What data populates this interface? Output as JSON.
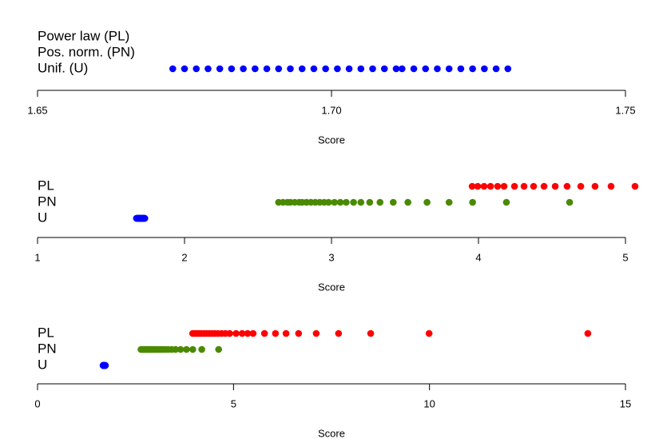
{
  "chart_data": [
    {
      "type": "strip",
      "categories": [
        "Power law (PL)",
        "Pos. norm. (PN)",
        "Unif. (U)"
      ],
      "series": [
        {
          "color": "#ff0000",
          "values": []
        },
        {
          "color": "#4a8a00",
          "values": []
        },
        {
          "color": "#0000ff",
          "values": [
            1.673,
            1.675,
            1.677,
            1.679,
            1.681,
            1.683,
            1.685,
            1.687,
            1.689,
            1.691,
            1.693,
            1.695,
            1.697,
            1.699,
            1.701,
            1.703,
            1.705,
            1.707,
            1.709,
            1.711,
            1.712,
            1.714,
            1.716,
            1.718,
            1.72,
            1.722,
            1.724,
            1.726,
            1.728,
            1.73
          ]
        }
      ],
      "xlim": [
        1.65,
        1.75
      ],
      "xticks": [
        1.65,
        {
          "value": 1.7,
          "label": "1.70"
        },
        1.75
      ],
      "xlabel": "Score"
    },
    {
      "type": "strip",
      "categories": [
        "PL",
        "PN",
        "U"
      ],
      "series": [
        {
          "color": "#ff0000",
          "values": [
            3.957,
            3.995,
            4.038,
            4.082,
            4.13,
            4.174,
            4.245,
            4.31,
            4.375,
            4.446,
            4.522,
            4.603,
            4.696,
            4.793,
            4.902,
            5.065
          ]
        },
        {
          "color": "#4a8a00",
          "values": [
            2.64,
            2.67,
            2.7,
            2.72,
            2.75,
            2.78,
            2.8,
            2.83,
            2.86,
            2.89,
            2.92,
            2.95,
            2.98,
            3.02,
            3.06,
            3.1,
            3.15,
            3.2,
            3.26,
            3.33,
            3.42,
            3.52,
            3.65,
            3.8,
            3.96,
            4.19,
            4.62
          ]
        },
        {
          "color": "#0000ff",
          "values": [
            1.673,
            1.675,
            1.677,
            1.679,
            1.681,
            1.683,
            1.685,
            1.687,
            1.689,
            1.691,
            1.693,
            1.695,
            1.697,
            1.699,
            1.701,
            1.703,
            1.705,
            1.707,
            1.709,
            1.711,
            1.712,
            1.714,
            1.716,
            1.718,
            1.72,
            1.722,
            1.724,
            1.726,
            1.728,
            1.73
          ]
        }
      ],
      "xlim": [
        1,
        5
      ],
      "xticks": [
        1,
        2,
        3,
        4,
        5
      ],
      "xlabel": "Score"
    },
    {
      "type": "strip",
      "categories": [
        "PL",
        "PN",
        "U"
      ],
      "series": [
        {
          "color": "#ff0000",
          "values": [
            3.957,
            3.995,
            4.038,
            4.082,
            4.13,
            4.174,
            4.245,
            4.31,
            4.375,
            4.446,
            4.522,
            4.603,
            4.696,
            4.793,
            4.902,
            5.065,
            5.22,
            5.36,
            5.5,
            5.79,
            6.07,
            6.34,
            6.66,
            7.11,
            7.68,
            8.5,
            9.99,
            14.04
          ]
        },
        {
          "color": "#4a8a00",
          "values": [
            2.64,
            2.67,
            2.7,
            2.72,
            2.75,
            2.78,
            2.8,
            2.83,
            2.86,
            2.89,
            2.92,
            2.95,
            2.98,
            3.02,
            3.06,
            3.1,
            3.15,
            3.2,
            3.26,
            3.33,
            3.42,
            3.52,
            3.65,
            3.8,
            3.96,
            4.19,
            4.62
          ]
        },
        {
          "color": "#0000ff",
          "values": [
            1.673,
            1.675,
            1.677,
            1.679,
            1.681,
            1.683,
            1.685,
            1.687,
            1.689,
            1.691,
            1.693,
            1.695,
            1.697,
            1.699,
            1.701,
            1.703,
            1.705,
            1.707,
            1.709,
            1.711,
            1.712,
            1.714,
            1.716,
            1.718,
            1.72,
            1.722,
            1.724,
            1.726,
            1.728,
            1.73
          ]
        }
      ],
      "xlim": [
        0,
        15
      ],
      "xticks": [
        0,
        5,
        10,
        15
      ],
      "xlabel": "Score"
    }
  ]
}
